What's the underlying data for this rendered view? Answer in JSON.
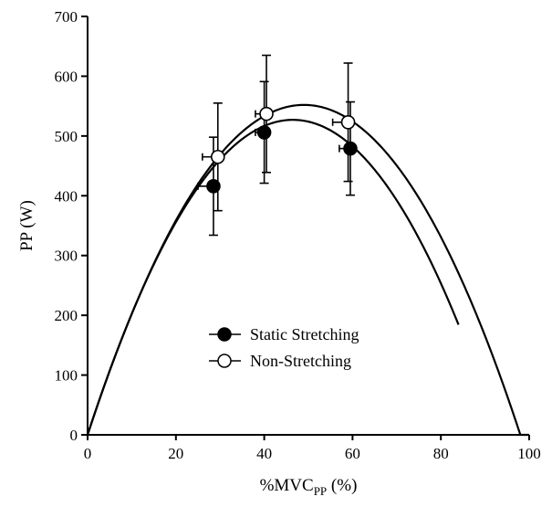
{
  "chart_data": {
    "type": "scatter",
    "xlabel": "%MVC",
    "xlabel_sub": "PP",
    "xlabel_unit": " (%)",
    "ylabel": "PP (W)",
    "xlim": [
      0,
      100
    ],
    "ylim": [
      0,
      700
    ],
    "x_ticks": [
      "0",
      "20",
      "40",
      "60",
      "80",
      "100"
    ],
    "y_ticks": [
      "0",
      "100",
      "200",
      "300",
      "400",
      "500",
      "600",
      "700"
    ],
    "grid": false,
    "legend_position": "center-bottom",
    "series": [
      {
        "name": "Static Stretching",
        "marker": "filled-circle",
        "points": [
          {
            "x": 28.5,
            "y": 416,
            "y_err": 82,
            "x_err": 3.5
          },
          {
            "x": 40.0,
            "y": 506,
            "y_err": 85,
            "x_err": 2.0
          },
          {
            "x": 59.5,
            "y": 479,
            "y_err": 78,
            "x_err": 2.5
          }
        ],
        "fit_curve": {
          "type": "parabola",
          "x_intercept": 84,
          "vertex_x": 46.5,
          "vertex_y": 527
        }
      },
      {
        "name": "Non-Stretching",
        "marker": "open-circle",
        "points": [
          {
            "x": 29.5,
            "y": 465,
            "y_err": 90,
            "x_err": 3.5
          },
          {
            "x": 40.5,
            "y": 537,
            "y_err": 98,
            "x_err": 2.5
          },
          {
            "x": 59.0,
            "y": 523,
            "y_err": 99,
            "x_err": 3.5
          }
        ],
        "fit_curve": {
          "type": "parabola",
          "x_intercept": 100,
          "vertex_x": 49,
          "vertex_y": 552
        }
      }
    ]
  }
}
